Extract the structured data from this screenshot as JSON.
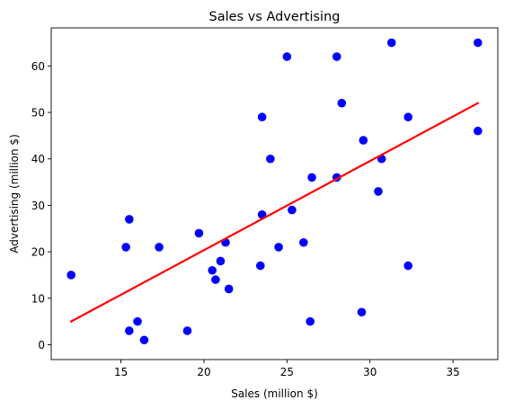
{
  "chart_data": {
    "type": "scatter",
    "title": "Sales vs Advertising",
    "xlabel": "Sales (million $)",
    "ylabel": "Advertising (million $)",
    "xlim": [
      10.8,
      37.7
    ],
    "ylim": [
      -3.2,
      68.2
    ],
    "xticks": [
      15,
      20,
      25,
      30,
      35
    ],
    "yticks": [
      0,
      10,
      20,
      30,
      40,
      50,
      60
    ],
    "grid": false,
    "point_color": "#0000ff",
    "line_color": "#ff0000",
    "points": [
      {
        "x": 12.0,
        "y": 15
      },
      {
        "x": 15.3,
        "y": 21
      },
      {
        "x": 15.5,
        "y": 27
      },
      {
        "x": 15.5,
        "y": 3
      },
      {
        "x": 16.0,
        "y": 5
      },
      {
        "x": 16.4,
        "y": 1
      },
      {
        "x": 17.3,
        "y": 21
      },
      {
        "x": 19.0,
        "y": 3
      },
      {
        "x": 19.7,
        "y": 24
      },
      {
        "x": 20.5,
        "y": 16
      },
      {
        "x": 20.7,
        "y": 14
      },
      {
        "x": 21.0,
        "y": 18
      },
      {
        "x": 21.3,
        "y": 22
      },
      {
        "x": 21.5,
        "y": 12
      },
      {
        "x": 23.4,
        "y": 17
      },
      {
        "x": 23.5,
        "y": 28
      },
      {
        "x": 23.5,
        "y": 49
      },
      {
        "x": 24.0,
        "y": 40
      },
      {
        "x": 24.5,
        "y": 21
      },
      {
        "x": 25.0,
        "y": 62
      },
      {
        "x": 25.3,
        "y": 29
      },
      {
        "x": 26.0,
        "y": 22
      },
      {
        "x": 26.4,
        "y": 5
      },
      {
        "x": 26.5,
        "y": 36
      },
      {
        "x": 28.0,
        "y": 62
      },
      {
        "x": 28.0,
        "y": 36
      },
      {
        "x": 28.3,
        "y": 52
      },
      {
        "x": 29.5,
        "y": 7
      },
      {
        "x": 29.6,
        "y": 44
      },
      {
        "x": 30.5,
        "y": 33
      },
      {
        "x": 30.7,
        "y": 40
      },
      {
        "x": 31.3,
        "y": 65
      },
      {
        "x": 32.3,
        "y": 49
      },
      {
        "x": 32.3,
        "y": 17
      },
      {
        "x": 36.5,
        "y": 65
      },
      {
        "x": 36.5,
        "y": 46
      }
    ],
    "trend_line": {
      "x": [
        12.0,
        36.5
      ],
      "y": [
        5.0,
        52.0
      ]
    }
  }
}
